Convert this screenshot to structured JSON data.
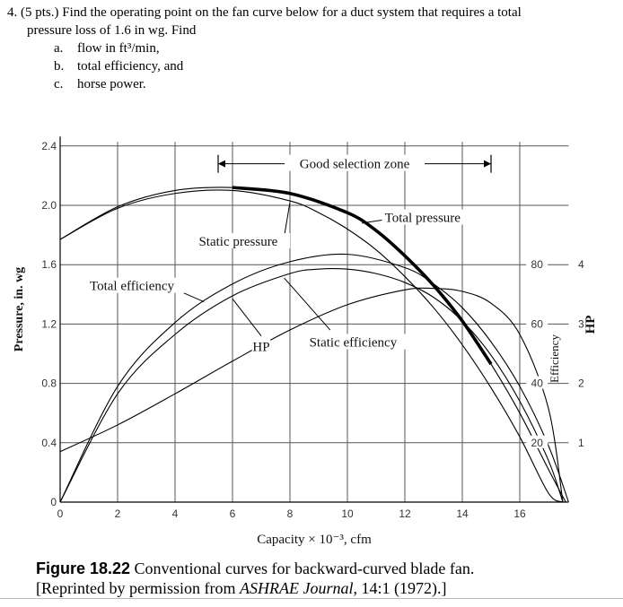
{
  "question": {
    "line1": "4.  (5 pts.) Find the operating point on the fan curve below for a duct system that requires a total",
    "line2": "pressure loss of 1.6 in wg. Find",
    "items": [
      {
        "letter": "a.",
        "text": "flow in ft³/min,"
      },
      {
        "letter": "b.",
        "text": "total efficiency, and"
      },
      {
        "letter": "c.",
        "text": "horse power."
      }
    ]
  },
  "caption": {
    "label": "Figure 18.22",
    "text": "Conventional curves for backward-curved blade fan.",
    "line2_pre": "[Reprinted by permission from ",
    "journal": "ASHRAE Journal",
    "line2_post": ", 14:1 (1972).]"
  },
  "chart_data": {
    "type": "line",
    "xlabel": "Capacity × 10⁻³, cfm",
    "ylabel": "Pressure, in. wg",
    "efficiency_axis_label": "Efficiency",
    "hp_axis_label": "HP",
    "xlim": [
      0,
      17.7
    ],
    "ylim": [
      0,
      2.5
    ],
    "x_ticks": [
      0,
      2,
      4,
      6,
      8,
      10,
      12,
      14,
      16
    ],
    "x_tick_labels": [
      "0",
      "2",
      "4",
      "6",
      "8",
      "10",
      "12",
      "14",
      "16"
    ],
    "y_ticks": [
      0,
      0.4,
      0.8,
      1.2,
      1.6,
      2.0,
      2.4
    ],
    "y_tick_labels": [
      "0",
      "0.4",
      "0.8",
      "1.2",
      "1.6",
      "2.0",
      "2.4"
    ],
    "efficiency_ticks": [
      {
        "pressure": 0.4,
        "label": "20"
      },
      {
        "pressure": 0.8,
        "label": "40"
      },
      {
        "pressure": 1.2,
        "label": "60"
      },
      {
        "pressure": 1.6,
        "label": "80"
      }
    ],
    "hp_ticks": [
      {
        "pressure": 0.4,
        "label": "1"
      },
      {
        "pressure": 0.8,
        "label": "2"
      },
      {
        "pressure": 1.2,
        "label": "3"
      },
      {
        "pressure": 1.6,
        "label": "4"
      }
    ],
    "grid": true,
    "good_selection_zone": {
      "label": "Good selection zone",
      "x": [
        5.5,
        15.0
      ]
    },
    "series": [
      {
        "name": "Static pressure",
        "x": [
          0,
          2,
          4,
          6,
          8,
          9,
          10,
          11,
          12,
          13,
          14,
          15,
          16,
          17,
          17.5
        ],
        "y": [
          1.77,
          1.98,
          2.08,
          2.1,
          2.03,
          1.95,
          1.84,
          1.7,
          1.52,
          1.31,
          1.06,
          0.77,
          0.44,
          0.06,
          0
        ]
      },
      {
        "name": "Total pressure",
        "x": [
          0,
          2,
          4,
          6,
          8,
          10,
          11,
          12,
          13,
          14,
          15,
          16,
          17,
          17.6
        ],
        "y": [
          1.77,
          1.99,
          2.1,
          2.12,
          2.08,
          1.95,
          1.83,
          1.66,
          1.46,
          1.22,
          0.93,
          0.6,
          0.22,
          0
        ]
      },
      {
        "name": "Total efficiency",
        "x": [
          0,
          2,
          4,
          6,
          8,
          10,
          12,
          13,
          14,
          15,
          16,
          17,
          17.7
        ],
        "y": [
          0.0,
          0.78,
          1.21,
          1.47,
          1.62,
          1.67,
          1.58,
          1.47,
          1.31,
          1.08,
          0.78,
          0.38,
          0
        ]
      },
      {
        "name": "Static efficiency",
        "x": [
          0,
          2,
          4,
          6,
          8,
          9,
          10,
          11,
          12,
          13,
          14,
          15,
          16,
          17,
          17.5
        ],
        "y": [
          0.0,
          0.73,
          1.13,
          1.39,
          1.54,
          1.57,
          1.57,
          1.54,
          1.48,
          1.38,
          1.22,
          0.99,
          0.68,
          0.28,
          0
        ]
      },
      {
        "name": "HP",
        "x": [
          0,
          2,
          4,
          6,
          8,
          10,
          12,
          13,
          14,
          15,
          16,
          17,
          17.5
        ],
        "y": [
          0.34,
          0.52,
          0.73,
          0.95,
          1.16,
          1.33,
          1.43,
          1.44,
          1.42,
          1.34,
          1.13,
          0.63,
          0
        ]
      }
    ]
  }
}
